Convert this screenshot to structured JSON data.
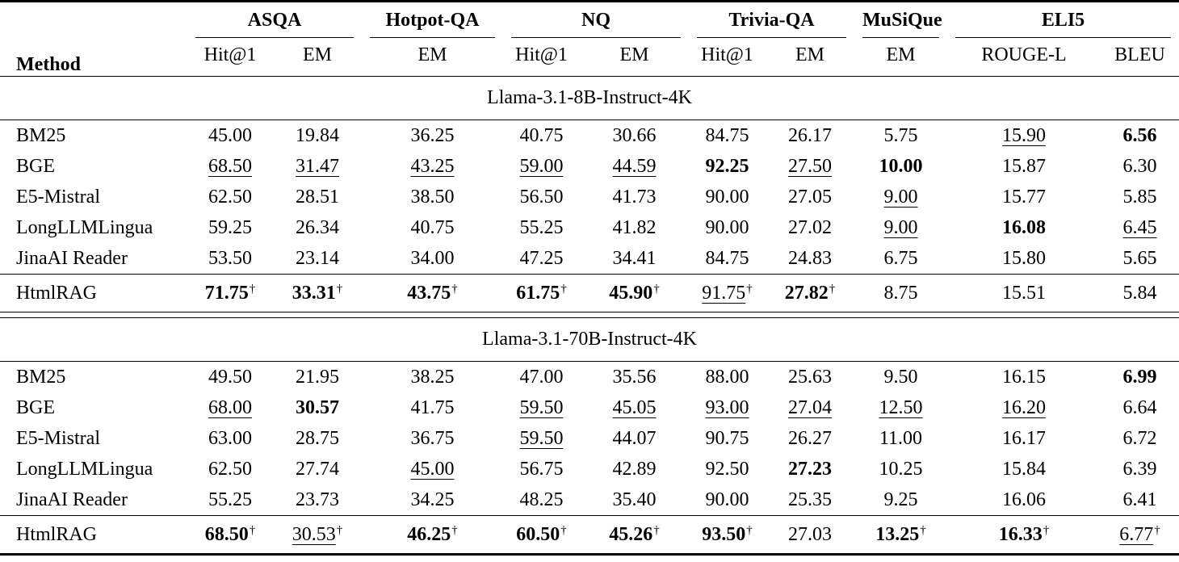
{
  "table": {
    "method_header": "Method",
    "dagger": "†",
    "groups": [
      {
        "label": "ASQA",
        "cols": [
          "Hit@1",
          "EM"
        ]
      },
      {
        "label": "Hotpot-QA",
        "cols": [
          "EM"
        ]
      },
      {
        "label": "NQ",
        "cols": [
          "Hit@1",
          "EM"
        ]
      },
      {
        "label": "Trivia-QA",
        "cols": [
          "Hit@1",
          "EM"
        ]
      },
      {
        "label": "MuSiQue",
        "cols": [
          "EM"
        ]
      },
      {
        "label": "ELI5",
        "cols": [
          "ROUGE-L",
          "BLEU"
        ]
      }
    ],
    "sections": [
      {
        "title": "Llama-3.1-8B-Instruct-4K",
        "rows": [
          {
            "method": "BM25",
            "cells": [
              {
                "v": "45.00"
              },
              {
                "v": "19.84"
              },
              {
                "v": "36.25"
              },
              {
                "v": "40.75"
              },
              {
                "v": "30.66"
              },
              {
                "v": "84.75"
              },
              {
                "v": "26.17"
              },
              {
                "v": "5.75"
              },
              {
                "v": "15.90",
                "u": true
              },
              {
                "v": "6.56",
                "b": true
              }
            ]
          },
          {
            "method": "BGE",
            "cells": [
              {
                "v": "68.50",
                "u": true
              },
              {
                "v": "31.47",
                "u": true
              },
              {
                "v": "43.25",
                "u": true
              },
              {
                "v": "59.00",
                "u": true
              },
              {
                "v": "44.59",
                "u": true
              },
              {
                "v": "92.25",
                "b": true
              },
              {
                "v": "27.50",
                "u": true
              },
              {
                "v": "10.00",
                "b": true
              },
              {
                "v": "15.87"
              },
              {
                "v": "6.30"
              }
            ]
          },
          {
            "method": "E5-Mistral",
            "cells": [
              {
                "v": "62.50"
              },
              {
                "v": "28.51"
              },
              {
                "v": "38.50"
              },
              {
                "v": "56.50"
              },
              {
                "v": "41.73"
              },
              {
                "v": "90.00"
              },
              {
                "v": "27.05"
              },
              {
                "v": "9.00",
                "u": true
              },
              {
                "v": "15.77"
              },
              {
                "v": "5.85"
              }
            ]
          },
          {
            "method": "LongLLMLingua",
            "cells": [
              {
                "v": "59.25"
              },
              {
                "v": "26.34"
              },
              {
                "v": "40.75"
              },
              {
                "v": "55.25"
              },
              {
                "v": "41.82"
              },
              {
                "v": "90.00"
              },
              {
                "v": "27.02"
              },
              {
                "v": "9.00",
                "u": true
              },
              {
                "v": "16.08",
                "b": true
              },
              {
                "v": "6.45",
                "u": true
              }
            ]
          },
          {
            "method": "JinaAI Reader",
            "cells": [
              {
                "v": "53.50"
              },
              {
                "v": "23.14"
              },
              {
                "v": "34.00"
              },
              {
                "v": "47.25"
              },
              {
                "v": "34.41"
              },
              {
                "v": "84.75"
              },
              {
                "v": "24.83"
              },
              {
                "v": "6.75"
              },
              {
                "v": "15.80"
              },
              {
                "v": "5.65"
              }
            ]
          }
        ],
        "final_row": {
          "method": "HtmlRAG",
          "cells": [
            {
              "v": "71.75",
              "b": true,
              "dg": true
            },
            {
              "v": "33.31",
              "b": true,
              "dg": true
            },
            {
              "v": "43.75",
              "b": true,
              "dg": true
            },
            {
              "v": "61.75",
              "b": true,
              "dg": true
            },
            {
              "v": "45.90",
              "b": true,
              "dg": true
            },
            {
              "v": "91.75",
              "u": true,
              "dg": true
            },
            {
              "v": "27.82",
              "b": true,
              "dg": true
            },
            {
              "v": "8.75"
            },
            {
              "v": "15.51"
            },
            {
              "v": "5.84"
            }
          ]
        }
      },
      {
        "title": "Llama-3.1-70B-Instruct-4K",
        "rows": [
          {
            "method": "BM25",
            "cells": [
              {
                "v": "49.50"
              },
              {
                "v": "21.95"
              },
              {
                "v": "38.25"
              },
              {
                "v": "47.00"
              },
              {
                "v": "35.56"
              },
              {
                "v": "88.00"
              },
              {
                "v": "25.63"
              },
              {
                "v": "9.50"
              },
              {
                "v": "16.15"
              },
              {
                "v": "6.99",
                "b": true
              }
            ]
          },
          {
            "method": "BGE",
            "cells": [
              {
                "v": "68.00",
                "u": true
              },
              {
                "v": "30.57",
                "b": true
              },
              {
                "v": "41.75"
              },
              {
                "v": "59.50",
                "u": true
              },
              {
                "v": "45.05",
                "u": true
              },
              {
                "v": "93.00",
                "u": true
              },
              {
                "v": "27.04",
                "u": true
              },
              {
                "v": "12.50",
                "u": true
              },
              {
                "v": "16.20",
                "u": true
              },
              {
                "v": "6.64"
              }
            ]
          },
          {
            "method": "E5-Mistral",
            "cells": [
              {
                "v": "63.00"
              },
              {
                "v": "28.75"
              },
              {
                "v": "36.75"
              },
              {
                "v": "59.50",
                "u": true
              },
              {
                "v": "44.07"
              },
              {
                "v": "90.75"
              },
              {
                "v": "26.27"
              },
              {
                "v": "11.00"
              },
              {
                "v": "16.17"
              },
              {
                "v": "6.72"
              }
            ]
          },
          {
            "method": "LongLLMLingua",
            "cells": [
              {
                "v": "62.50"
              },
              {
                "v": "27.74"
              },
              {
                "v": "45.00",
                "u": true
              },
              {
                "v": "56.75"
              },
              {
                "v": "42.89"
              },
              {
                "v": "92.50"
              },
              {
                "v": "27.23",
                "b": true
              },
              {
                "v": "10.25"
              },
              {
                "v": "15.84"
              },
              {
                "v": "6.39"
              }
            ]
          },
          {
            "method": "JinaAI Reader",
            "cells": [
              {
                "v": "55.25"
              },
              {
                "v": "23.73"
              },
              {
                "v": "34.25"
              },
              {
                "v": "48.25"
              },
              {
                "v": "35.40"
              },
              {
                "v": "90.00"
              },
              {
                "v": "25.35"
              },
              {
                "v": "9.25"
              },
              {
                "v": "16.06"
              },
              {
                "v": "6.41"
              }
            ]
          }
        ],
        "final_row": {
          "method": "HtmlRAG",
          "cells": [
            {
              "v": "68.50",
              "b": true,
              "dg": true
            },
            {
              "v": "30.53",
              "u": true,
              "dg": true
            },
            {
              "v": "46.25",
              "b": true,
              "dg": true
            },
            {
              "v": "60.50",
              "b": true,
              "dg": true
            },
            {
              "v": "45.26",
              "b": true,
              "dg": true
            },
            {
              "v": "93.50",
              "b": true,
              "dg": true
            },
            {
              "v": "27.03"
            },
            {
              "v": "13.25",
              "b": true,
              "dg": true
            },
            {
              "v": "16.33",
              "b": true,
              "dg": true
            },
            {
              "v": "6.77",
              "u": true,
              "dg": true
            }
          ]
        }
      }
    ]
  }
}
